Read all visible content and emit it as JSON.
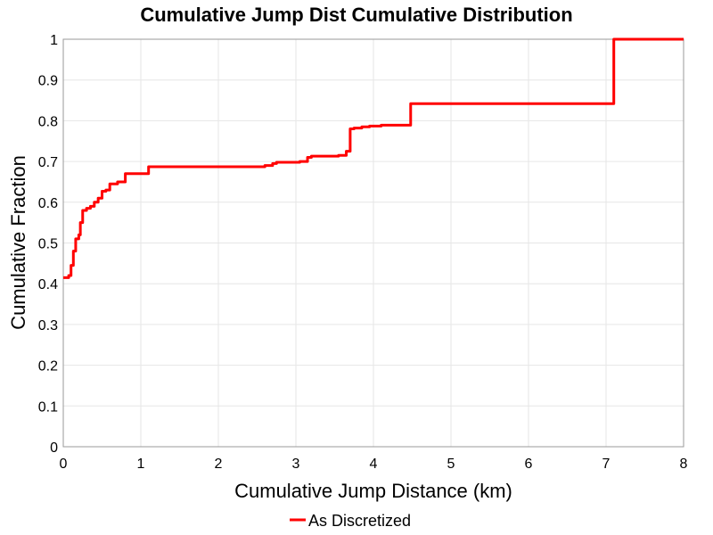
{
  "chart_data": {
    "type": "line",
    "title": "Cumulative Jump Dist Cumulative Distribution",
    "xlabel": "Cumulative Jump Distance (km)",
    "ylabel": "Cumulative Fraction",
    "xlim": [
      0,
      8
    ],
    "ylim": [
      0,
      1
    ],
    "x_ticks": [
      0,
      1,
      2,
      3,
      4,
      5,
      6,
      7,
      8
    ],
    "y_ticks": [
      0,
      0.1,
      0.2,
      0.3,
      0.4,
      0.5,
      0.6,
      0.7,
      0.8,
      0.9,
      1
    ],
    "x_tick_labels": [
      "0",
      "1",
      "2",
      "3",
      "4",
      "5",
      "6",
      "7",
      "8"
    ],
    "y_tick_labels": [
      "0",
      "0.1",
      "0.2",
      "0.3",
      "0.4",
      "0.5",
      "0.6",
      "0.7",
      "0.8",
      "0.9",
      "1"
    ],
    "grid": true,
    "legend_position": "bottom-center",
    "series": [
      {
        "name": "As Discretized",
        "color": "#ff0000",
        "step": true,
        "x": [
          0,
          0.07,
          0.1,
          0.13,
          0.16,
          0.2,
          0.22,
          0.25,
          0.3,
          0.35,
          0.4,
          0.45,
          0.5,
          0.55,
          0.6,
          0.7,
          0.8,
          1.1,
          2.6,
          2.7,
          2.75,
          3.05,
          3.15,
          3.2,
          3.55,
          3.65,
          3.7,
          3.75,
          3.85,
          3.95,
          4.1,
          4.48,
          7.05,
          7.1,
          8.0
        ],
        "y": [
          0.415,
          0.42,
          0.445,
          0.48,
          0.51,
          0.52,
          0.55,
          0.58,
          0.585,
          0.59,
          0.6,
          0.61,
          0.627,
          0.63,
          0.645,
          0.65,
          0.67,
          0.687,
          0.69,
          0.695,
          0.698,
          0.7,
          0.71,
          0.713,
          0.715,
          0.725,
          0.78,
          0.782,
          0.785,
          0.787,
          0.789,
          0.842,
          0.842,
          1.0,
          1.0
        ]
      }
    ]
  }
}
